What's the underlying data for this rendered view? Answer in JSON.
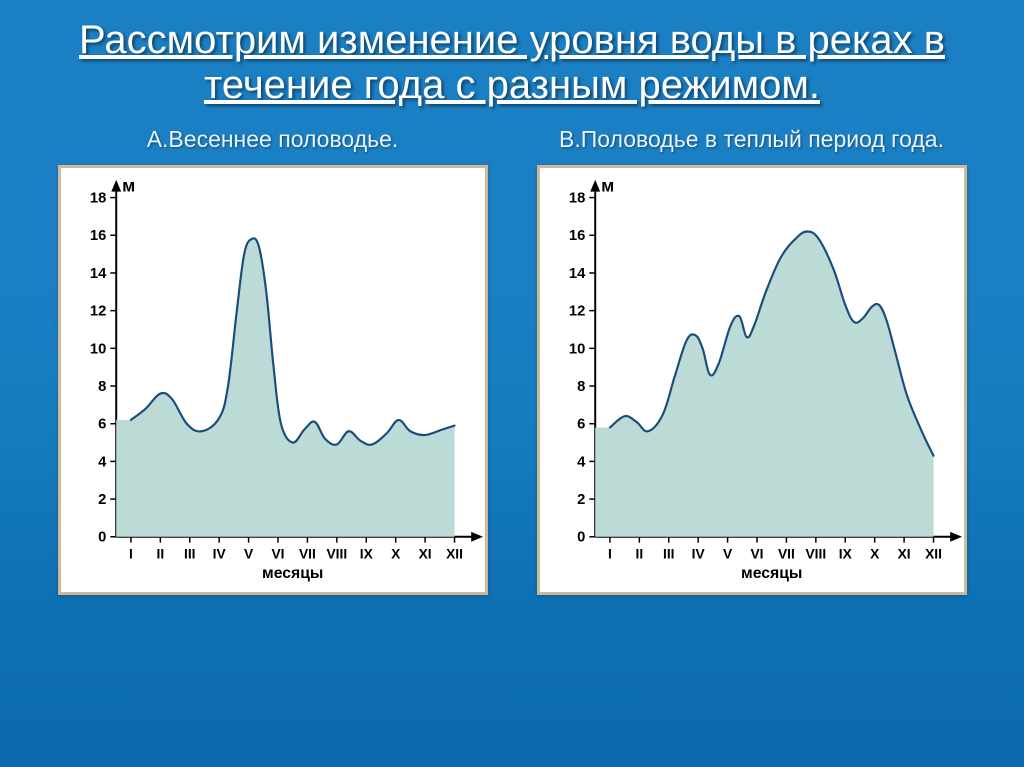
{
  "title": "Рассмотрим изменение уровня воды в реках в течение года с разным режимом.",
  "chartA": {
    "subtitle": "А.Весеннее половодье.",
    "type": "area",
    "y_unit_label": "м",
    "x_axis_title": "месяцы",
    "ylim": [
      0,
      18
    ],
    "y_ticks": [
      0,
      2,
      4,
      6,
      8,
      10,
      12,
      14,
      16,
      18
    ],
    "x_categories": [
      "I",
      "II",
      "III",
      "IV",
      "V",
      "VI",
      "VII",
      "VIII",
      "IX",
      "X",
      "XI",
      "XII"
    ],
    "line_color": "#1b4d7a",
    "fill_color": "#bcdad6",
    "axis_color": "#000000",
    "line_width": 2.2,
    "background_color": "#ffffff",
    "data_points": [
      {
        "x": 0.0,
        "y": 6.2
      },
      {
        "x": 0.5,
        "y": 6.8
      },
      {
        "x": 1.0,
        "y": 7.6
      },
      {
        "x": 1.4,
        "y": 7.3
      },
      {
        "x": 1.9,
        "y": 6.0
      },
      {
        "x": 2.4,
        "y": 5.6
      },
      {
        "x": 3.0,
        "y": 6.3
      },
      {
        "x": 3.3,
        "y": 8.0
      },
      {
        "x": 3.6,
        "y": 12.0
      },
      {
        "x": 3.85,
        "y": 15.0
      },
      {
        "x": 4.1,
        "y": 15.8
      },
      {
        "x": 4.35,
        "y": 15.4
      },
      {
        "x": 4.6,
        "y": 13.0
      },
      {
        "x": 4.85,
        "y": 9.0
      },
      {
        "x": 5.1,
        "y": 6.0
      },
      {
        "x": 5.5,
        "y": 5.0
      },
      {
        "x": 5.9,
        "y": 5.7
      },
      {
        "x": 6.25,
        "y": 6.1
      },
      {
        "x": 6.6,
        "y": 5.2
      },
      {
        "x": 7.0,
        "y": 4.9
      },
      {
        "x": 7.4,
        "y": 5.6
      },
      {
        "x": 7.8,
        "y": 5.1
      },
      {
        "x": 8.2,
        "y": 4.9
      },
      {
        "x": 8.7,
        "y": 5.5
      },
      {
        "x": 9.1,
        "y": 6.2
      },
      {
        "x": 9.5,
        "y": 5.6
      },
      {
        "x": 10.0,
        "y": 5.4
      },
      {
        "x": 10.6,
        "y": 5.7
      },
      {
        "x": 11.0,
        "y": 5.9
      }
    ]
  },
  "chartB": {
    "subtitle": "В.Половодье в теплый период года.",
    "type": "area",
    "y_unit_label": "м",
    "x_axis_title": "месяцы",
    "ylim": [
      0,
      18
    ],
    "y_ticks": [
      0,
      2,
      4,
      6,
      8,
      10,
      12,
      14,
      16,
      18
    ],
    "x_categories": [
      "I",
      "II",
      "III",
      "IV",
      "V",
      "VI",
      "VII",
      "VIII",
      "IX",
      "X",
      "XI",
      "XII"
    ],
    "line_color": "#1b4d7a",
    "fill_color": "#bcdad6",
    "axis_color": "#000000",
    "line_width": 2.2,
    "background_color": "#ffffff",
    "data_points": [
      {
        "x": 0.0,
        "y": 5.8
      },
      {
        "x": 0.5,
        "y": 6.4
      },
      {
        "x": 0.9,
        "y": 6.1
      },
      {
        "x": 1.3,
        "y": 5.6
      },
      {
        "x": 1.8,
        "y": 6.5
      },
      {
        "x": 2.2,
        "y": 8.5
      },
      {
        "x": 2.6,
        "y": 10.4
      },
      {
        "x": 2.9,
        "y": 10.7
      },
      {
        "x": 3.15,
        "y": 10.0
      },
      {
        "x": 3.4,
        "y": 8.6
      },
      {
        "x": 3.7,
        "y": 9.2
      },
      {
        "x": 4.1,
        "y": 11.2
      },
      {
        "x": 4.4,
        "y": 11.7
      },
      {
        "x": 4.65,
        "y": 10.6
      },
      {
        "x": 4.9,
        "y": 11.2
      },
      {
        "x": 5.3,
        "y": 13.0
      },
      {
        "x": 5.8,
        "y": 14.8
      },
      {
        "x": 6.3,
        "y": 15.8
      },
      {
        "x": 6.7,
        "y": 16.2
      },
      {
        "x": 7.1,
        "y": 15.8
      },
      {
        "x": 7.6,
        "y": 14.2
      },
      {
        "x": 8.0,
        "y": 12.3
      },
      {
        "x": 8.3,
        "y": 11.4
      },
      {
        "x": 8.6,
        "y": 11.6
      },
      {
        "x": 8.9,
        "y": 12.2
      },
      {
        "x": 9.15,
        "y": 12.3
      },
      {
        "x": 9.4,
        "y": 11.5
      },
      {
        "x": 9.7,
        "y": 9.8
      },
      {
        "x": 10.1,
        "y": 7.5
      },
      {
        "x": 10.6,
        "y": 5.6
      },
      {
        "x": 11.0,
        "y": 4.3
      }
    ]
  }
}
